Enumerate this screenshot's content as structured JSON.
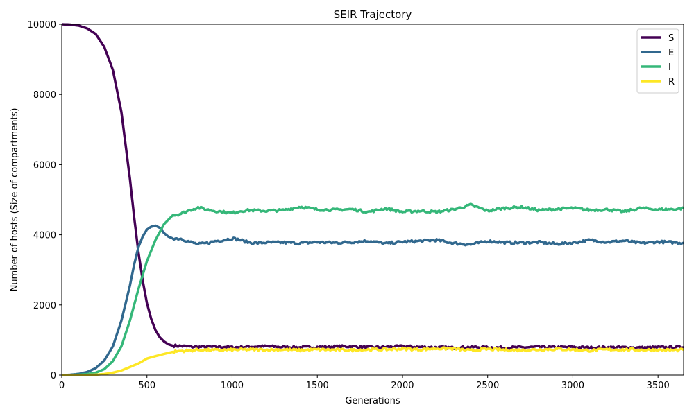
{
  "chart_data": {
    "type": "line",
    "title": "SEIR Trajectory",
    "xlabel": "Generations",
    "ylabel": "Number of hosts (Size of compartments)",
    "xlim": [
      0,
      3650
    ],
    "ylim": [
      0,
      10000
    ],
    "xticks": [
      0,
      500,
      1000,
      1500,
      2000,
      2500,
      3000,
      3500
    ],
    "yticks": [
      0,
      2000,
      4000,
      6000,
      8000,
      10000
    ],
    "grid": false,
    "legend_position": "top-right",
    "series": [
      {
        "name": "S",
        "color": "#440154",
        "points": [
          [
            0,
            10000
          ],
          [
            50,
            9990
          ],
          [
            100,
            9960
          ],
          [
            150,
            9880
          ],
          [
            200,
            9720
          ],
          [
            250,
            9350
          ],
          [
            300,
            8700
          ],
          [
            350,
            7500
          ],
          [
            400,
            5600
          ],
          [
            425,
            4500
          ],
          [
            450,
            3500
          ],
          [
            475,
            2700
          ],
          [
            500,
            2050
          ],
          [
            525,
            1600
          ],
          [
            550,
            1280
          ],
          [
            575,
            1080
          ],
          [
            600,
            960
          ],
          [
            625,
            880
          ],
          [
            650,
            840
          ],
          [
            700,
            830
          ],
          [
            750,
            810
          ],
          [
            800,
            800
          ],
          [
            850,
            810
          ],
          [
            900,
            800
          ],
          [
            950,
            810
          ],
          [
            1000,
            790
          ],
          [
            1100,
            810
          ],
          [
            1200,
            820
          ],
          [
            1300,
            800
          ],
          [
            1400,
            790
          ],
          [
            1500,
            800
          ],
          [
            1600,
            810
          ],
          [
            1700,
            820
          ],
          [
            1800,
            790
          ],
          [
            1900,
            800
          ],
          [
            2000,
            820
          ],
          [
            2100,
            800
          ],
          [
            2200,
            790
          ],
          [
            2300,
            780
          ],
          [
            2400,
            800
          ],
          [
            2500,
            790
          ],
          [
            2600,
            780
          ],
          [
            2700,
            790
          ],
          [
            2800,
            800
          ],
          [
            2900,
            790
          ],
          [
            3000,
            800
          ],
          [
            3100,
            780
          ],
          [
            3200,
            790
          ],
          [
            3300,
            790
          ],
          [
            3400,
            780
          ],
          [
            3500,
            790
          ],
          [
            3600,
            790
          ],
          [
            3650,
            800
          ]
        ]
      },
      {
        "name": "E",
        "color": "#31688e",
        "points": [
          [
            0,
            0
          ],
          [
            50,
            10
          ],
          [
            100,
            35
          ],
          [
            150,
            90
          ],
          [
            200,
            200
          ],
          [
            250,
            420
          ],
          [
            300,
            820
          ],
          [
            350,
            1550
          ],
          [
            400,
            2550
          ],
          [
            425,
            3150
          ],
          [
            450,
            3650
          ],
          [
            475,
            3950
          ],
          [
            500,
            4150
          ],
          [
            525,
            4230
          ],
          [
            550,
            4260
          ],
          [
            575,
            4200
          ],
          [
            600,
            4050
          ],
          [
            625,
            3950
          ],
          [
            650,
            3900
          ],
          [
            700,
            3890
          ],
          [
            750,
            3800
          ],
          [
            800,
            3730
          ],
          [
            850,
            3760
          ],
          [
            900,
            3820
          ],
          [
            950,
            3850
          ],
          [
            1000,
            3900
          ],
          [
            1050,
            3850
          ],
          [
            1100,
            3780
          ],
          [
            1150,
            3760
          ],
          [
            1200,
            3780
          ],
          [
            1300,
            3780
          ],
          [
            1400,
            3760
          ],
          [
            1500,
            3790
          ],
          [
            1600,
            3770
          ],
          [
            1700,
            3790
          ],
          [
            1800,
            3830
          ],
          [
            1900,
            3750
          ],
          [
            2000,
            3800
          ],
          [
            2100,
            3820
          ],
          [
            2200,
            3850
          ],
          [
            2300,
            3760
          ],
          [
            2400,
            3720
          ],
          [
            2500,
            3820
          ],
          [
            2600,
            3780
          ],
          [
            2700,
            3770
          ],
          [
            2800,
            3790
          ],
          [
            2900,
            3740
          ],
          [
            3000,
            3770
          ],
          [
            3100,
            3850
          ],
          [
            3200,
            3790
          ],
          [
            3300,
            3830
          ],
          [
            3400,
            3760
          ],
          [
            3500,
            3800
          ],
          [
            3600,
            3780
          ],
          [
            3650,
            3770
          ]
        ]
      },
      {
        "name": "I",
        "color": "#35b779",
        "points": [
          [
            0,
            0
          ],
          [
            50,
            5
          ],
          [
            100,
            12
          ],
          [
            150,
            30
          ],
          [
            200,
            70
          ],
          [
            250,
            170
          ],
          [
            300,
            400
          ],
          [
            350,
            820
          ],
          [
            400,
            1550
          ],
          [
            450,
            2450
          ],
          [
            500,
            3250
          ],
          [
            550,
            3850
          ],
          [
            600,
            4300
          ],
          [
            650,
            4550
          ],
          [
            700,
            4600
          ],
          [
            750,
            4700
          ],
          [
            800,
            4780
          ],
          [
            850,
            4720
          ],
          [
            900,
            4680
          ],
          [
            950,
            4650
          ],
          [
            1000,
            4620
          ],
          [
            1050,
            4680
          ],
          [
            1100,
            4700
          ],
          [
            1200,
            4680
          ],
          [
            1300,
            4700
          ],
          [
            1400,
            4800
          ],
          [
            1500,
            4720
          ],
          [
            1600,
            4710
          ],
          [
            1700,
            4730
          ],
          [
            1800,
            4650
          ],
          [
            1900,
            4750
          ],
          [
            2000,
            4650
          ],
          [
            2100,
            4680
          ],
          [
            2200,
            4650
          ],
          [
            2300,
            4720
          ],
          [
            2400,
            4850
          ],
          [
            2500,
            4680
          ],
          [
            2600,
            4760
          ],
          [
            2700,
            4790
          ],
          [
            2800,
            4700
          ],
          [
            2900,
            4730
          ],
          [
            3000,
            4760
          ],
          [
            3100,
            4700
          ],
          [
            3200,
            4720
          ],
          [
            3300,
            4660
          ],
          [
            3400,
            4760
          ],
          [
            3500,
            4720
          ],
          [
            3600,
            4730
          ],
          [
            3650,
            4760
          ]
        ]
      },
      {
        "name": "R",
        "color": "#fde725",
        "points": [
          [
            0,
            0
          ],
          [
            100,
            2
          ],
          [
            200,
            12
          ],
          [
            250,
            30
          ],
          [
            300,
            70
          ],
          [
            350,
            130
          ],
          [
            400,
            230
          ],
          [
            450,
            330
          ],
          [
            500,
            470
          ],
          [
            550,
            540
          ],
          [
            600,
            600
          ],
          [
            650,
            660
          ],
          [
            700,
            690
          ],
          [
            750,
            700
          ],
          [
            800,
            720
          ],
          [
            850,
            720
          ],
          [
            900,
            710
          ],
          [
            1000,
            720
          ],
          [
            1100,
            730
          ],
          [
            1200,
            720
          ],
          [
            1300,
            730
          ],
          [
            1400,
            710
          ],
          [
            1500,
            730
          ],
          [
            1600,
            720
          ],
          [
            1700,
            710
          ],
          [
            1800,
            730
          ],
          [
            1900,
            730
          ],
          [
            2000,
            750
          ],
          [
            2100,
            730
          ],
          [
            2200,
            760
          ],
          [
            2300,
            750
          ],
          [
            2400,
            700
          ],
          [
            2500,
            740
          ],
          [
            2600,
            720
          ],
          [
            2700,
            710
          ],
          [
            2800,
            730
          ],
          [
            2900,
            740
          ],
          [
            3000,
            730
          ],
          [
            3100,
            700
          ],
          [
            3200,
            730
          ],
          [
            3300,
            730
          ],
          [
            3400,
            720
          ],
          [
            3500,
            720
          ],
          [
            3600,
            710
          ],
          [
            3650,
            720
          ]
        ]
      }
    ]
  }
}
